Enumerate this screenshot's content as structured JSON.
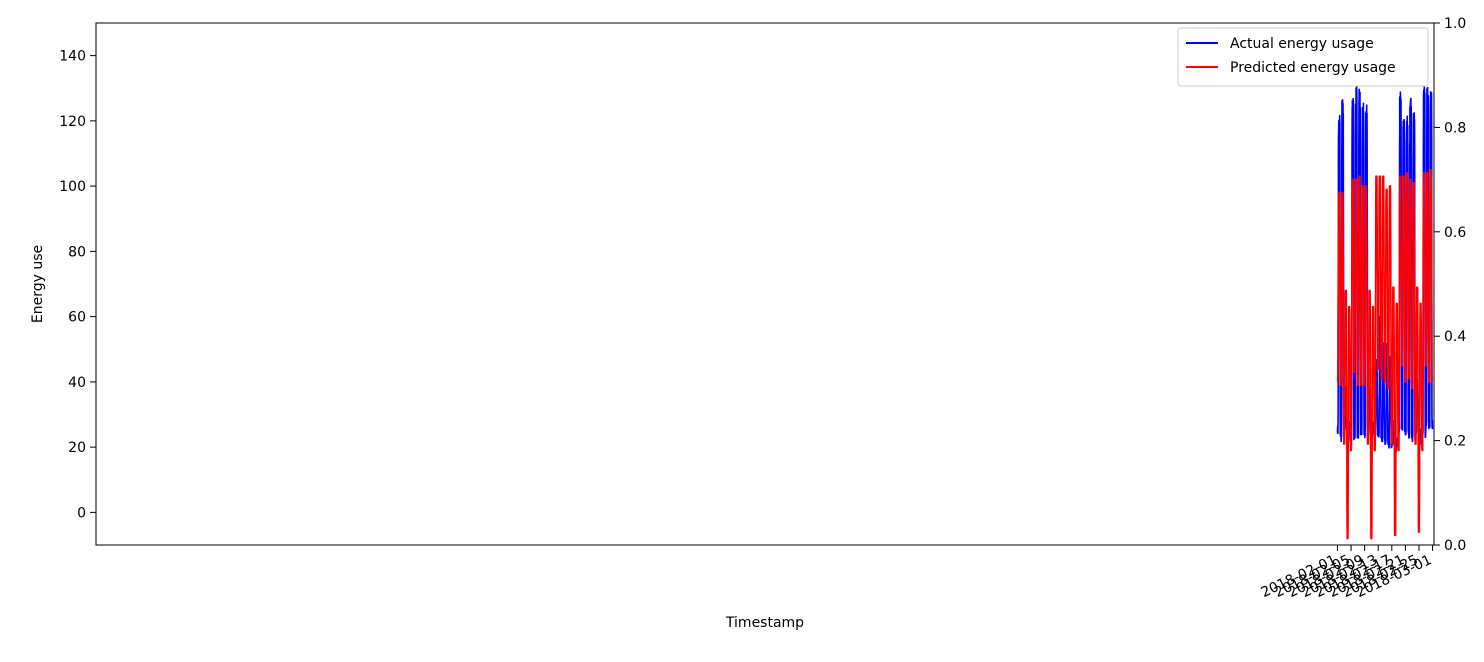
{
  "chart_data": {
    "type": "line",
    "title": "",
    "xlabel": "Timestamp",
    "ylabel": "Energy use",
    "x_start": "2018-02-01",
    "x_end": "2018-03-01",
    "xlim": [
      "2017-01-31T14:00",
      "2018-03-01T10:00"
    ],
    "ylim": [
      -10,
      150
    ],
    "y_ticks": [
      0,
      20,
      40,
      60,
      80,
      100,
      120,
      140
    ],
    "x_ticks": [
      "2018-02-01",
      "2018-02-05",
      "2018-02-09",
      "2018-02-13",
      "2018-02-17",
      "2018-02-21",
      "2018-02-25",
      "2018-03-01"
    ],
    "y2_lim": [
      0.0,
      1.0
    ],
    "y2_ticks": [
      "0.0",
      "0.2",
      "0.4",
      "0.6",
      "0.8",
      "1.0"
    ],
    "grid": false,
    "legend_position": "top-right",
    "series": [
      {
        "name": "Actual energy usage",
        "color": "#0000ff",
        "day_profile": [
          {
            "date": "2018-02-01",
            "workday": true,
            "base": 25,
            "peak": 122
          },
          {
            "date": "2018-02-02",
            "workday": true,
            "base": 23,
            "peak": 126
          },
          {
            "date": "2018-02-03",
            "workday": false,
            "base": 25,
            "peak": 38
          },
          {
            "date": "2018-02-04",
            "workday": false,
            "base": 22,
            "peak": 27
          },
          {
            "date": "2018-02-05",
            "workday": true,
            "base": 23,
            "peak": 127
          },
          {
            "date": "2018-02-06",
            "workday": true,
            "base": 24,
            "peak": 130
          },
          {
            "date": "2018-02-07",
            "workday": true,
            "base": 24,
            "peak": 129
          },
          {
            "date": "2018-02-08",
            "workday": true,
            "base": 25,
            "peak": 126
          },
          {
            "date": "2018-02-09",
            "workday": true,
            "base": 24,
            "peak": 124
          },
          {
            "date": "2018-02-10",
            "workday": false,
            "base": 25,
            "peak": 37
          },
          {
            "date": "2018-02-11",
            "workday": false,
            "base": 24,
            "peak": 27
          },
          {
            "date": "2018-02-12",
            "workday": false,
            "base": 25,
            "peak": 47
          },
          {
            "date": "2018-02-13",
            "workday": false,
            "base": 24,
            "peak": 60
          },
          {
            "date": "2018-02-14",
            "workday": false,
            "base": 23,
            "peak": 52
          },
          {
            "date": "2018-02-15",
            "workday": false,
            "base": 22,
            "peak": 51
          },
          {
            "date": "2018-02-16",
            "workday": false,
            "base": 21,
            "peak": 47
          },
          {
            "date": "2018-02-17",
            "workday": false,
            "base": 21,
            "peak": 27
          },
          {
            "date": "2018-02-18",
            "workday": false,
            "base": 20,
            "peak": 22
          },
          {
            "date": "2018-02-19",
            "workday": true,
            "base": 26,
            "peak": 128
          },
          {
            "date": "2018-02-20",
            "workday": true,
            "base": 26,
            "peak": 121
          },
          {
            "date": "2018-02-21",
            "workday": true,
            "base": 25,
            "peak": 121
          },
          {
            "date": "2018-02-22",
            "workday": true,
            "base": 24,
            "peak": 126
          },
          {
            "date": "2018-02-23",
            "workday": true,
            "base": 23,
            "peak": 123
          },
          {
            "date": "2018-02-24",
            "workday": false,
            "base": 25,
            "peak": 40
          },
          {
            "date": "2018-02-25",
            "workday": false,
            "base": 21,
            "peak": 25
          },
          {
            "date": "2018-02-26",
            "workday": true,
            "base": 24,
            "peak": 130
          },
          {
            "date": "2018-02-27",
            "workday": true,
            "base": 27,
            "peak": 130
          },
          {
            "date": "2018-02-28",
            "workday": true,
            "base": 27,
            "peak": 128
          }
        ]
      },
      {
        "name": "Predicted energy usage",
        "color": "#ff0000",
        "day_profile": [
          {
            "date": "2018-02-01",
            "base": 40,
            "peak": 98
          },
          {
            "date": "2018-02-02",
            "base": 39,
            "peak": 98
          },
          {
            "date": "2018-02-03",
            "base": 21,
            "peak": 68
          },
          {
            "date": "2018-02-04",
            "base": -8,
            "peak": 63
          },
          {
            "date": "2018-02-05",
            "base": 19,
            "peak": 102
          },
          {
            "date": "2018-02-06",
            "base": 43,
            "peak": 102
          },
          {
            "date": "2018-02-07",
            "base": 39,
            "peak": 103
          },
          {
            "date": "2018-02-08",
            "base": 39,
            "peak": 100
          },
          {
            "date": "2018-02-09",
            "base": 39,
            "peak": 100
          },
          {
            "date": "2018-02-10",
            "base": 21,
            "peak": 68
          },
          {
            "date": "2018-02-11",
            "base": -8,
            "peak": 63
          },
          {
            "date": "2018-02-12",
            "base": 19,
            "peak": 103
          },
          {
            "date": "2018-02-13",
            "base": 44,
            "peak": 103
          },
          {
            "date": "2018-02-14",
            "base": 41,
            "peak": 103
          },
          {
            "date": "2018-02-15",
            "base": 40,
            "peak": 99
          },
          {
            "date": "2018-02-16",
            "base": 38,
            "peak": 100
          },
          {
            "date": "2018-02-17",
            "base": 21,
            "peak": 69
          },
          {
            "date": "2018-02-18",
            "base": -7,
            "peak": 64
          },
          {
            "date": "2018-02-19",
            "base": 19,
            "peak": 103
          },
          {
            "date": "2018-02-20",
            "base": 45,
            "peak": 103
          },
          {
            "date": "2018-02-21",
            "base": 40,
            "peak": 104
          },
          {
            "date": "2018-02-22",
            "base": 41,
            "peak": 102
          },
          {
            "date": "2018-02-23",
            "base": 38,
            "peak": 101
          },
          {
            "date": "2018-02-24",
            "base": 21,
            "peak": 69
          },
          {
            "date": "2018-02-25",
            "base": -6,
            "peak": 64
          },
          {
            "date": "2018-02-26",
            "base": 19,
            "peak": 104
          },
          {
            "date": "2018-02-27",
            "base": 45,
            "peak": 104
          },
          {
            "date": "2018-02-28",
            "base": 40,
            "peak": 105
          }
        ],
        "end_value": 40
      }
    ]
  }
}
